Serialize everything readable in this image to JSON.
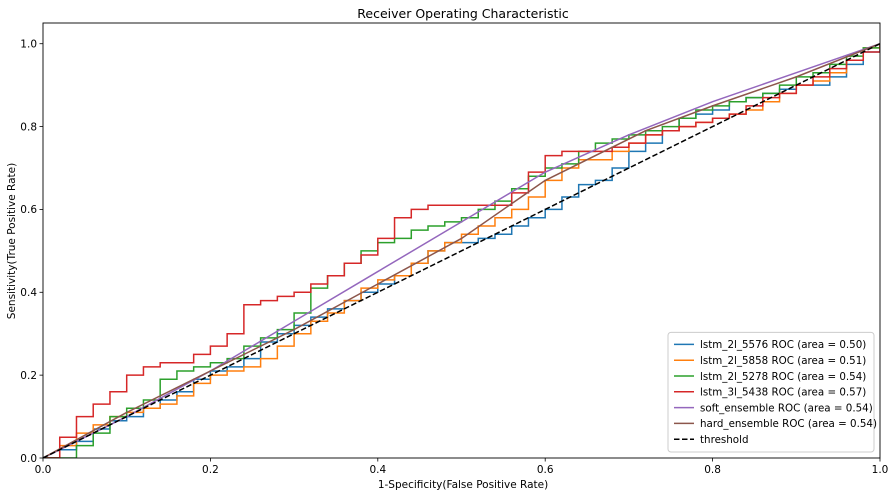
{
  "chart_data": {
    "type": "line",
    "title": "Receiver Operating Characteristic",
    "xlabel": "1-Specificity(False Positive Rate)",
    "ylabel": "Sensitivity(True Positive Rate)",
    "xlim": [
      0.0,
      1.0
    ],
    "ylim": [
      0.0,
      1.05
    ],
    "xticks": [
      "0.0",
      "0.2",
      "0.4",
      "0.6",
      "0.8",
      "1.0"
    ],
    "yticks": [
      "0.0",
      "0.2",
      "0.4",
      "0.6",
      "0.8",
      "1.0"
    ],
    "grid": false,
    "legend_position": "lower right",
    "series": [
      {
        "name": "lstm_2l_5576 ROC (area = 0.50)",
        "color": "#1f77b4",
        "step": true,
        "x": [
          0.0,
          0.02,
          0.04,
          0.06,
          0.08,
          0.1,
          0.12,
          0.14,
          0.16,
          0.18,
          0.2,
          0.22,
          0.24,
          0.26,
          0.28,
          0.3,
          0.32,
          0.34,
          0.36,
          0.38,
          0.4,
          0.42,
          0.44,
          0.46,
          0.48,
          0.5,
          0.52,
          0.54,
          0.56,
          0.58,
          0.6,
          0.62,
          0.64,
          0.66,
          0.68,
          0.7,
          0.72,
          0.74,
          0.76,
          0.78,
          0.8,
          0.82,
          0.84,
          0.86,
          0.88,
          0.9,
          0.92,
          0.94,
          0.96,
          0.98,
          1.0
        ],
        "y": [
          0.0,
          0.02,
          0.04,
          0.07,
          0.09,
          0.1,
          0.12,
          0.14,
          0.16,
          0.19,
          0.21,
          0.22,
          0.24,
          0.28,
          0.3,
          0.32,
          0.34,
          0.36,
          0.38,
          0.4,
          0.42,
          0.44,
          0.47,
          0.5,
          0.52,
          0.52,
          0.53,
          0.54,
          0.56,
          0.58,
          0.6,
          0.63,
          0.66,
          0.67,
          0.7,
          0.74,
          0.76,
          0.79,
          0.82,
          0.83,
          0.84,
          0.86,
          0.87,
          0.88,
          0.89,
          0.9,
          0.9,
          0.92,
          0.95,
          0.98,
          1.0
        ]
      },
      {
        "name": "lstm_2l_5858 ROC (area = 0.51)",
        "color": "#ff7f0e",
        "step": true,
        "x": [
          0.0,
          0.02,
          0.04,
          0.06,
          0.08,
          0.1,
          0.12,
          0.14,
          0.16,
          0.18,
          0.2,
          0.22,
          0.24,
          0.26,
          0.28,
          0.3,
          0.32,
          0.34,
          0.36,
          0.38,
          0.4,
          0.42,
          0.44,
          0.46,
          0.48,
          0.5,
          0.52,
          0.54,
          0.56,
          0.58,
          0.6,
          0.62,
          0.64,
          0.66,
          0.68,
          0.7,
          0.72,
          0.74,
          0.76,
          0.78,
          0.8,
          0.82,
          0.84,
          0.86,
          0.88,
          0.9,
          0.92,
          0.94,
          0.96,
          0.98,
          1.0
        ],
        "y": [
          0.0,
          0.03,
          0.06,
          0.08,
          0.1,
          0.11,
          0.12,
          0.13,
          0.15,
          0.18,
          0.2,
          0.21,
          0.22,
          0.24,
          0.27,
          0.3,
          0.33,
          0.35,
          0.38,
          0.41,
          0.43,
          0.44,
          0.47,
          0.5,
          0.52,
          0.54,
          0.56,
          0.58,
          0.6,
          0.63,
          0.67,
          0.7,
          0.72,
          0.72,
          0.74,
          0.76,
          0.78,
          0.79,
          0.8,
          0.81,
          0.82,
          0.83,
          0.84,
          0.86,
          0.88,
          0.9,
          0.91,
          0.93,
          0.96,
          0.99,
          1.0
        ]
      },
      {
        "name": "lstm_2l_5278 ROC (area = 0.54)",
        "color": "#2ca02c",
        "step": true,
        "x": [
          0.0,
          0.02,
          0.04,
          0.06,
          0.08,
          0.1,
          0.12,
          0.14,
          0.16,
          0.18,
          0.2,
          0.22,
          0.24,
          0.26,
          0.28,
          0.3,
          0.32,
          0.34,
          0.36,
          0.38,
          0.4,
          0.42,
          0.44,
          0.46,
          0.48,
          0.5,
          0.52,
          0.54,
          0.56,
          0.58,
          0.6,
          0.62,
          0.64,
          0.66,
          0.68,
          0.7,
          0.72,
          0.74,
          0.76,
          0.78,
          0.8,
          0.82,
          0.84,
          0.86,
          0.88,
          0.9,
          0.92,
          0.94,
          0.96,
          0.98,
          1.0
        ],
        "y": [
          0.0,
          0.0,
          0.03,
          0.06,
          0.1,
          0.12,
          0.14,
          0.19,
          0.21,
          0.22,
          0.23,
          0.24,
          0.27,
          0.29,
          0.31,
          0.35,
          0.41,
          0.44,
          0.47,
          0.5,
          0.52,
          0.53,
          0.55,
          0.56,
          0.57,
          0.58,
          0.6,
          0.62,
          0.65,
          0.68,
          0.7,
          0.71,
          0.74,
          0.76,
          0.77,
          0.78,
          0.79,
          0.8,
          0.82,
          0.84,
          0.85,
          0.86,
          0.87,
          0.88,
          0.9,
          0.92,
          0.93,
          0.95,
          0.97,
          0.99,
          1.0
        ]
      },
      {
        "name": "lstm_3l_5438 ROC (area = 0.57)",
        "color": "#d62728",
        "step": true,
        "x": [
          0.0,
          0.02,
          0.04,
          0.06,
          0.08,
          0.1,
          0.12,
          0.14,
          0.16,
          0.18,
          0.2,
          0.22,
          0.24,
          0.26,
          0.28,
          0.3,
          0.32,
          0.34,
          0.36,
          0.38,
          0.4,
          0.42,
          0.44,
          0.46,
          0.48,
          0.5,
          0.52,
          0.54,
          0.56,
          0.58,
          0.6,
          0.62,
          0.64,
          0.66,
          0.68,
          0.7,
          0.72,
          0.74,
          0.76,
          0.78,
          0.8,
          0.82,
          0.84,
          0.86,
          0.88,
          0.9,
          0.92,
          0.94,
          0.96,
          0.98,
          1.0
        ],
        "y": [
          0.0,
          0.05,
          0.1,
          0.13,
          0.16,
          0.2,
          0.22,
          0.23,
          0.23,
          0.25,
          0.27,
          0.3,
          0.37,
          0.38,
          0.39,
          0.4,
          0.42,
          0.44,
          0.47,
          0.49,
          0.53,
          0.58,
          0.6,
          0.61,
          0.61,
          0.61,
          0.61,
          0.61,
          0.64,
          0.69,
          0.73,
          0.74,
          0.74,
          0.74,
          0.75,
          0.76,
          0.78,
          0.79,
          0.8,
          0.81,
          0.82,
          0.83,
          0.85,
          0.87,
          0.88,
          0.9,
          0.92,
          0.94,
          0.96,
          0.98,
          1.0
        ]
      },
      {
        "name": "soft_ensemble ROC (area = 0.54)",
        "color": "#9467bd",
        "step": false,
        "x": [
          0.0,
          0.1,
          0.2,
          0.3,
          0.4,
          0.5,
          0.6,
          0.7,
          0.8,
          0.9,
          1.0
        ],
        "y": [
          0.0,
          0.1,
          0.21,
          0.33,
          0.45,
          0.57,
          0.69,
          0.78,
          0.86,
          0.93,
          1.0
        ]
      },
      {
        "name": "hard_ensemble ROC (area = 0.54)",
        "color": "#8c564b",
        "step": false,
        "x": [
          0.0,
          0.1,
          0.2,
          0.3,
          0.4,
          0.5,
          0.6,
          0.72,
          0.8,
          0.9,
          1.0
        ],
        "y": [
          0.0,
          0.11,
          0.21,
          0.31,
          0.42,
          0.53,
          0.67,
          0.79,
          0.85,
          0.92,
          1.0
        ]
      },
      {
        "name": "threshold",
        "color": "#000000",
        "dashed": true,
        "step": false,
        "x": [
          0.0,
          1.0
        ],
        "y": [
          0.0,
          1.0
        ]
      }
    ]
  }
}
